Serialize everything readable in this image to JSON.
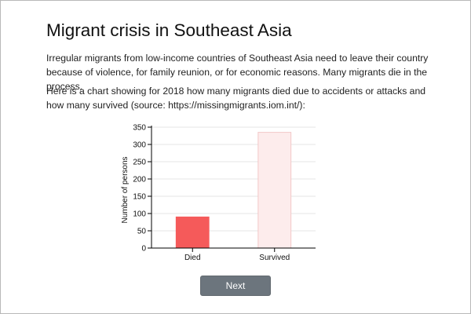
{
  "page": {
    "title": "Migrant crisis in Southeast Asia",
    "intro": "Irregular migrants from low-income countries of Southeast Asia need to leave their country because of violence, for family reunion, or for economic reasons. Many migrants die in the process.",
    "chart_intro": "Here is a chart showing for 2018 how many migrants died due to accidents or attacks and how many survived (source: https://missingmigrants.iom.int/):"
  },
  "chart_data": {
    "type": "bar",
    "title": "",
    "categories": [
      "Died",
      "Survived"
    ],
    "values": [
      90,
      335
    ],
    "bar_colors": [
      "#f55a5a",
      "#fdecec"
    ],
    "bar_edge_colors": [
      "#f55a5a",
      "#f2c8c8"
    ],
    "xlabel": "",
    "ylabel": "Number of persons",
    "ylim": [
      0,
      350
    ],
    "yticks": [
      0,
      50,
      100,
      150,
      200,
      250,
      300,
      350
    ],
    "grid": true
  },
  "actions": {
    "next_label": "Next"
  }
}
